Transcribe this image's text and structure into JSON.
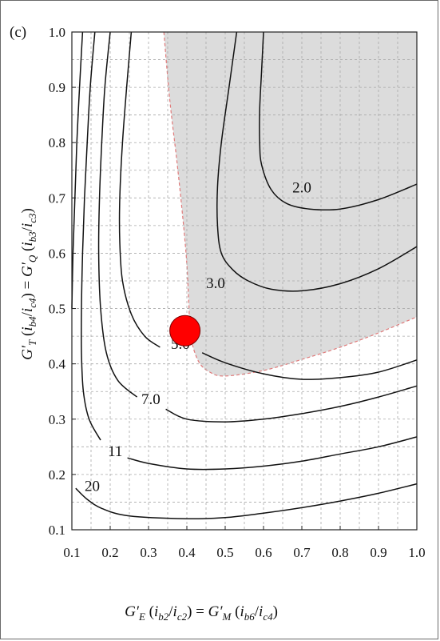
{
  "chart_data": {
    "type": "contour",
    "panel_label": "(c)",
    "xlabel_parts": {
      "lhs_G": "G′",
      "lhs_sub": "E",
      "lhs_arg_open": " (",
      "lhs_arg_i1": "i",
      "lhs_arg_s1": "b2",
      "lhs_arg_sep": "/",
      "lhs_arg_i2": "i",
      "lhs_arg_s2": "c2",
      "lhs_arg_close": ") = ",
      "rhs_G": "G′",
      "rhs_sub": "M",
      "rhs_arg_open": " (",
      "rhs_arg_i1": "i",
      "rhs_arg_s1": "b6",
      "rhs_arg_sep": "/",
      "rhs_arg_i2": "i",
      "rhs_arg_s2": "c4",
      "rhs_arg_close": ")"
    },
    "ylabel_parts": {
      "lhs_G": "G′",
      "lhs_sub": "T",
      "lhs_arg_open": " (",
      "lhs_arg_i1": "i",
      "lhs_arg_s1": "b4",
      "lhs_arg_sep": "/",
      "lhs_arg_i2": "i",
      "lhs_arg_s2": "c4",
      "lhs_arg_close": ") = ",
      "rhs_G": "G′",
      "rhs_sub": "Q",
      "rhs_arg_open": " (",
      "rhs_arg_i1": "i",
      "rhs_arg_s1": "b3",
      "rhs_arg_sep": "/",
      "rhs_arg_i2": "i",
      "rhs_arg_s2": "c3",
      "rhs_arg_close": ")"
    },
    "xlim": [
      0.1,
      1.0
    ],
    "ylim": [
      0.1,
      1.0
    ],
    "xticks": [
      "0.1",
      "0.2",
      "0.3",
      "0.4",
      "0.5",
      "0.6",
      "0.7",
      "0.8",
      "0.9",
      "1.0"
    ],
    "yticks": [
      "0.1",
      "0.2",
      "0.3",
      "0.4",
      "0.5",
      "0.6",
      "0.7",
      "0.8",
      "0.9",
      "1.0"
    ],
    "grid": true,
    "grid_step": 0.05,
    "shaded_region": {
      "fill": "#dcdcdc",
      "edge_color": "#e07a7a",
      "boundary": [
        [
          0.34,
          1.0
        ],
        [
          0.355,
          0.88
        ],
        [
          0.375,
          0.76
        ],
        [
          0.39,
          0.66
        ],
        [
          0.4,
          0.58
        ],
        [
          0.405,
          0.51
        ],
        [
          0.41,
          0.45
        ],
        [
          0.43,
          0.405
        ],
        [
          0.46,
          0.385
        ],
        [
          0.5,
          0.378
        ],
        [
          0.6,
          0.388
        ],
        [
          0.7,
          0.408
        ],
        [
          0.8,
          0.43
        ],
        [
          0.9,
          0.456
        ],
        [
          1.0,
          0.485
        ]
      ]
    },
    "contours": [
      {
        "label": "2.0",
        "label_at": [
          0.7,
          0.72
        ],
        "points": [
          [
            0.6,
            1.0
          ],
          [
            0.595,
            0.93
          ],
          [
            0.59,
            0.86
          ],
          [
            0.59,
            0.8
          ],
          [
            0.595,
            0.76
          ],
          [
            0.62,
            0.715
          ],
          [
            0.66,
            0.69
          ],
          [
            0.72,
            0.68
          ],
          [
            0.8,
            0.68
          ],
          [
            0.9,
            0.697
          ],
          [
            1.0,
            0.725
          ]
        ]
      },
      {
        "label": "3.0",
        "label_at": [
          0.475,
          0.547
        ],
        "points": [
          [
            0.53,
            1.0
          ],
          [
            0.51,
            0.9
          ],
          [
            0.49,
            0.8
          ],
          [
            0.48,
            0.72
          ],
          [
            0.48,
            0.65
          ],
          [
            0.49,
            0.6
          ],
          [
            0.52,
            0.57
          ],
          [
            0.56,
            0.55
          ],
          [
            0.62,
            0.535
          ],
          [
            0.7,
            0.532
          ],
          [
            0.8,
            0.545
          ],
          [
            0.9,
            0.572
          ],
          [
            1.0,
            0.612
          ]
        ]
      },
      {
        "label": "5.0",
        "label_at": [
          0.383,
          0.437
        ],
        "points": [
          [
            0.255,
            1.0
          ],
          [
            0.243,
            0.9
          ],
          [
            0.232,
            0.8
          ],
          [
            0.225,
            0.7
          ],
          [
            0.225,
            0.62
          ],
          [
            0.232,
            0.55
          ],
          [
            0.255,
            0.49
          ],
          [
            0.29,
            0.45
          ],
          [
            0.33,
            0.43
          ]
        ]
      },
      {
        "label": "5.0 (right)",
        "label_at": null,
        "points": [
          [
            0.44,
            0.42
          ],
          [
            0.5,
            0.402
          ],
          [
            0.6,
            0.382
          ],
          [
            0.7,
            0.372
          ],
          [
            0.8,
            0.375
          ],
          [
            0.9,
            0.385
          ],
          [
            1.0,
            0.407
          ]
        ]
      },
      {
        "label": "7.0",
        "label_at": [
          0.306,
          0.337
        ],
        "points": [
          [
            0.2,
            1.0
          ],
          [
            0.186,
            0.9
          ],
          [
            0.178,
            0.8
          ],
          [
            0.172,
            0.7
          ],
          [
            0.17,
            0.6
          ],
          [
            0.175,
            0.5
          ],
          [
            0.19,
            0.42
          ],
          [
            0.22,
            0.37
          ],
          [
            0.27,
            0.34
          ]
        ]
      },
      {
        "label": "7.0 (right)",
        "label_at": null,
        "points": [
          [
            0.345,
            0.318
          ],
          [
            0.4,
            0.3
          ],
          [
            0.5,
            0.295
          ],
          [
            0.6,
            0.3
          ],
          [
            0.7,
            0.31
          ],
          [
            0.8,
            0.323
          ],
          [
            0.9,
            0.34
          ],
          [
            1.0,
            0.36
          ]
        ]
      },
      {
        "label": "11",
        "label_at": [
          0.213,
          0.243
        ],
        "points": [
          [
            0.16,
            1.0
          ],
          [
            0.148,
            0.9
          ],
          [
            0.14,
            0.8
          ],
          [
            0.133,
            0.7
          ],
          [
            0.128,
            0.6
          ],
          [
            0.125,
            0.5
          ],
          [
            0.125,
            0.42
          ],
          [
            0.13,
            0.35
          ],
          [
            0.145,
            0.3
          ],
          [
            0.175,
            0.262
          ]
        ]
      },
      {
        "label": "11 (right)",
        "label_at": null,
        "points": [
          [
            0.245,
            0.23
          ],
          [
            0.3,
            0.22
          ],
          [
            0.4,
            0.21
          ],
          [
            0.5,
            0.21
          ],
          [
            0.6,
            0.215
          ],
          [
            0.7,
            0.224
          ],
          [
            0.8,
            0.237
          ],
          [
            0.9,
            0.25
          ],
          [
            1.0,
            0.268
          ]
        ]
      },
      {
        "label": "20",
        "label_at": [
          0.153,
          0.18
        ],
        "points": [
          [
            0.128,
            1.0
          ],
          [
            0.12,
            0.9
          ],
          [
            0.113,
            0.8
          ],
          [
            0.108,
            0.7
          ],
          [
            0.103,
            0.6
          ],
          [
            0.1,
            0.5
          ]
        ]
      },
      {
        "label": "20 (right)",
        "label_at": null,
        "points": [
          [
            0.11,
            0.175
          ],
          [
            0.14,
            0.155
          ],
          [
            0.18,
            0.138
          ],
          [
            0.25,
            0.125
          ],
          [
            0.4,
            0.12
          ],
          [
            0.5,
            0.122
          ],
          [
            0.6,
            0.13
          ],
          [
            0.7,
            0.14
          ],
          [
            0.8,
            0.152
          ],
          [
            0.9,
            0.166
          ],
          [
            1.0,
            0.183
          ]
        ]
      }
    ],
    "marker": {
      "x": 0.395,
      "y": 0.46,
      "color": "#ff0000"
    }
  }
}
